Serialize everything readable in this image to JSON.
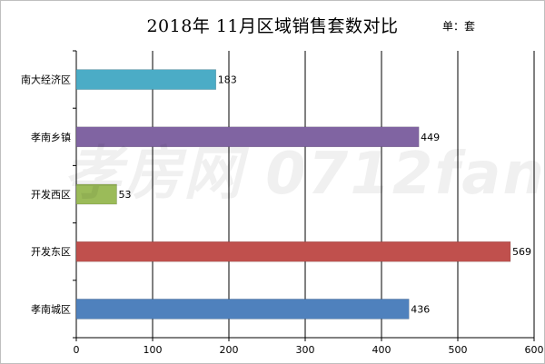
{
  "chart_data": {
    "type": "bar",
    "orientation": "horizontal",
    "title": "2018年 11月区域销售套数对比",
    "unit_label": "单：套",
    "categories": [
      "南大经济区",
      "孝南乡镇",
      "开发西区",
      "开发东区",
      "孝南城区"
    ],
    "values": [
      183,
      449,
      53,
      569,
      436
    ],
    "colors": [
      "#4bacc6",
      "#8064a2",
      "#9bbb59",
      "#c0504d",
      "#4f81bd"
    ],
    "xlim": [
      0,
      600
    ],
    "xticks": [
      0,
      100,
      200,
      300,
      400,
      500,
      600
    ],
    "grid": true,
    "legend": "none"
  },
  "watermark": "孝房网 0712fang.com"
}
